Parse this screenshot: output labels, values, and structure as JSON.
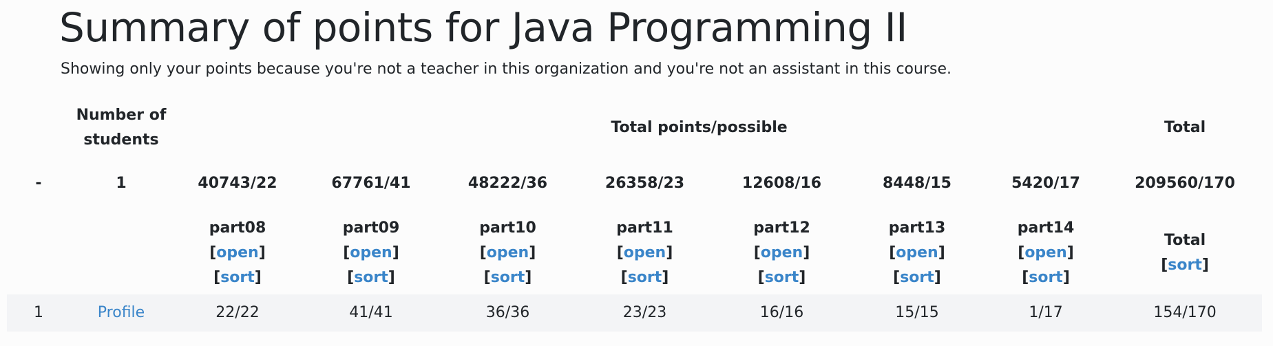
{
  "header": {
    "title": "Summary of points for Java Programming II",
    "subtitle": "Showing only your points because you're not a teacher in this organization and you're not an assistant in this course."
  },
  "table": {
    "group_headers": [
      "Number of students",
      "Total points/possible",
      "Total"
    ],
    "totals_row": [
      "-",
      "1",
      "40743/22",
      "67761/41",
      "48222/36",
      "26358/23",
      "12608/16",
      "8448/15",
      "5420/17",
      "209560/170"
    ],
    "brackets": [
      "[",
      "]"
    ],
    "parts": [
      {
        "name": "part08",
        "open": "open",
        "sort": "sort"
      },
      {
        "name": "part09",
        "open": "open",
        "sort": "sort"
      },
      {
        "name": "part10",
        "open": "open",
        "sort": "sort"
      },
      {
        "name": "part11",
        "open": "open",
        "sort": "sort"
      },
      {
        "name": "part12",
        "open": "open",
        "sort": "sort"
      },
      {
        "name": "part13",
        "open": "open",
        "sort": "sort"
      },
      {
        "name": "part14",
        "open": "open",
        "sort": "sort"
      }
    ],
    "total_column": {
      "name": "Total",
      "sort": "sort"
    },
    "rows": [
      [
        "1",
        "Profile",
        "22/22",
        "41/41",
        "36/36",
        "23/23",
        "16/16",
        "15/15",
        "1/17",
        "154/170"
      ]
    ]
  }
}
